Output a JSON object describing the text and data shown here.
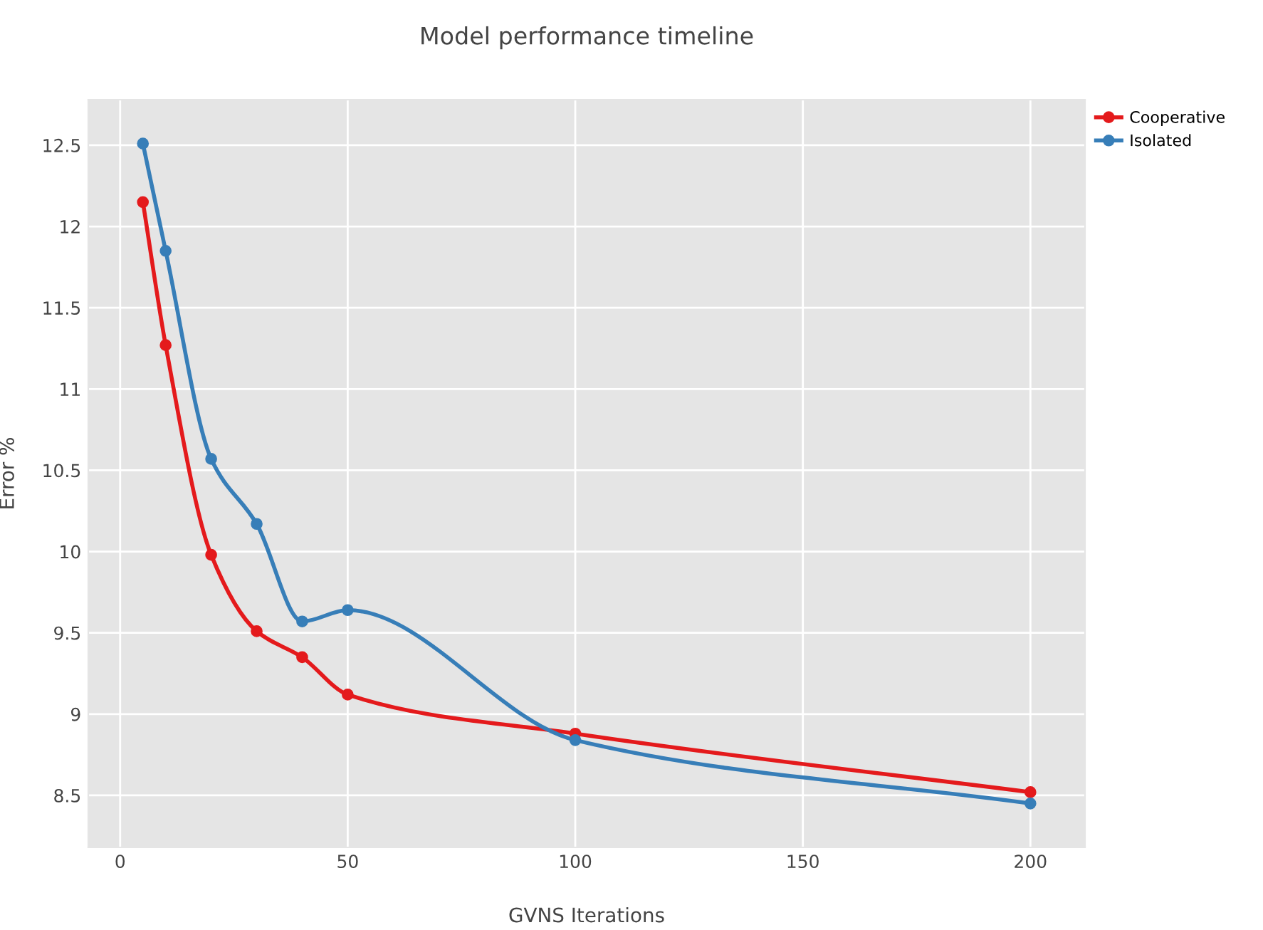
{
  "chart_data": {
    "type": "line",
    "title": "Model performance timeline",
    "xlabel": "GVNS Iterations",
    "ylabel": "Error %",
    "x": [
      5,
      10,
      20,
      30,
      40,
      50,
      100,
      200
    ],
    "series": [
      {
        "name": "Cooperative",
        "color": "#e41a1c",
        "values": [
          12.15,
          11.27,
          9.98,
          9.51,
          9.35,
          9.12,
          8.88,
          8.52
        ]
      },
      {
        "name": "Isolated",
        "color": "#377eb8",
        "values": [
          12.51,
          11.85,
          10.57,
          10.17,
          9.57,
          9.64,
          8.84,
          8.45
        ]
      }
    ],
    "xlim": [
      -7,
      212
    ],
    "ylim": [
      8.18,
      12.78
    ],
    "xticks": [
      0,
      50,
      100,
      150,
      200
    ],
    "yticks": [
      8.5,
      9,
      9.5,
      10,
      10.5,
      11,
      11.5,
      12,
      12.5
    ],
    "grid": true,
    "legend": "top right",
    "marker": "circle",
    "line_style": "solid"
  }
}
